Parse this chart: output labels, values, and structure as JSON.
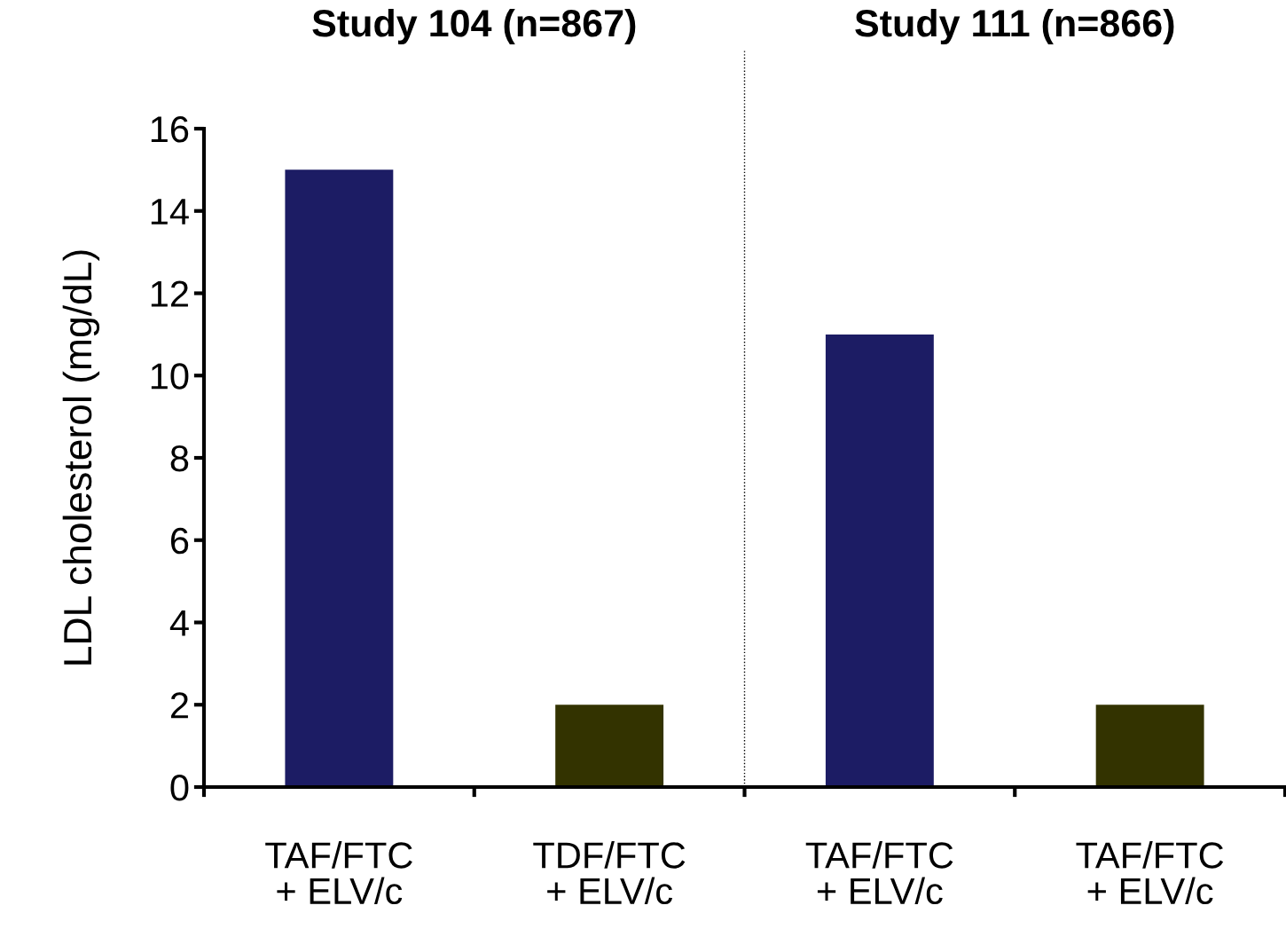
{
  "chart_data": {
    "type": "bar",
    "categories": [
      "TAF/FTC\n+ ELV/c",
      "TDF/FTC\n+ ELV/c",
      "TAF/FTC\n+ ELV/c",
      "TAF/FTC\n+ ELV/c"
    ],
    "values": [
      15,
      2,
      11,
      2
    ],
    "colors": [
      "#1c1c64",
      "#333300",
      "#1c1c64",
      "#333300"
    ],
    "ylabel": "LDL cholesterol (mg/dL)",
    "ylim": [
      0,
      16
    ],
    "yticks": [
      0,
      2,
      4,
      6,
      8,
      10,
      12,
      14,
      16
    ],
    "annotations": [
      "Study 104 (n=867)",
      "Study 111 (n=866)"
    ],
    "grid": false,
    "legend": false
  }
}
